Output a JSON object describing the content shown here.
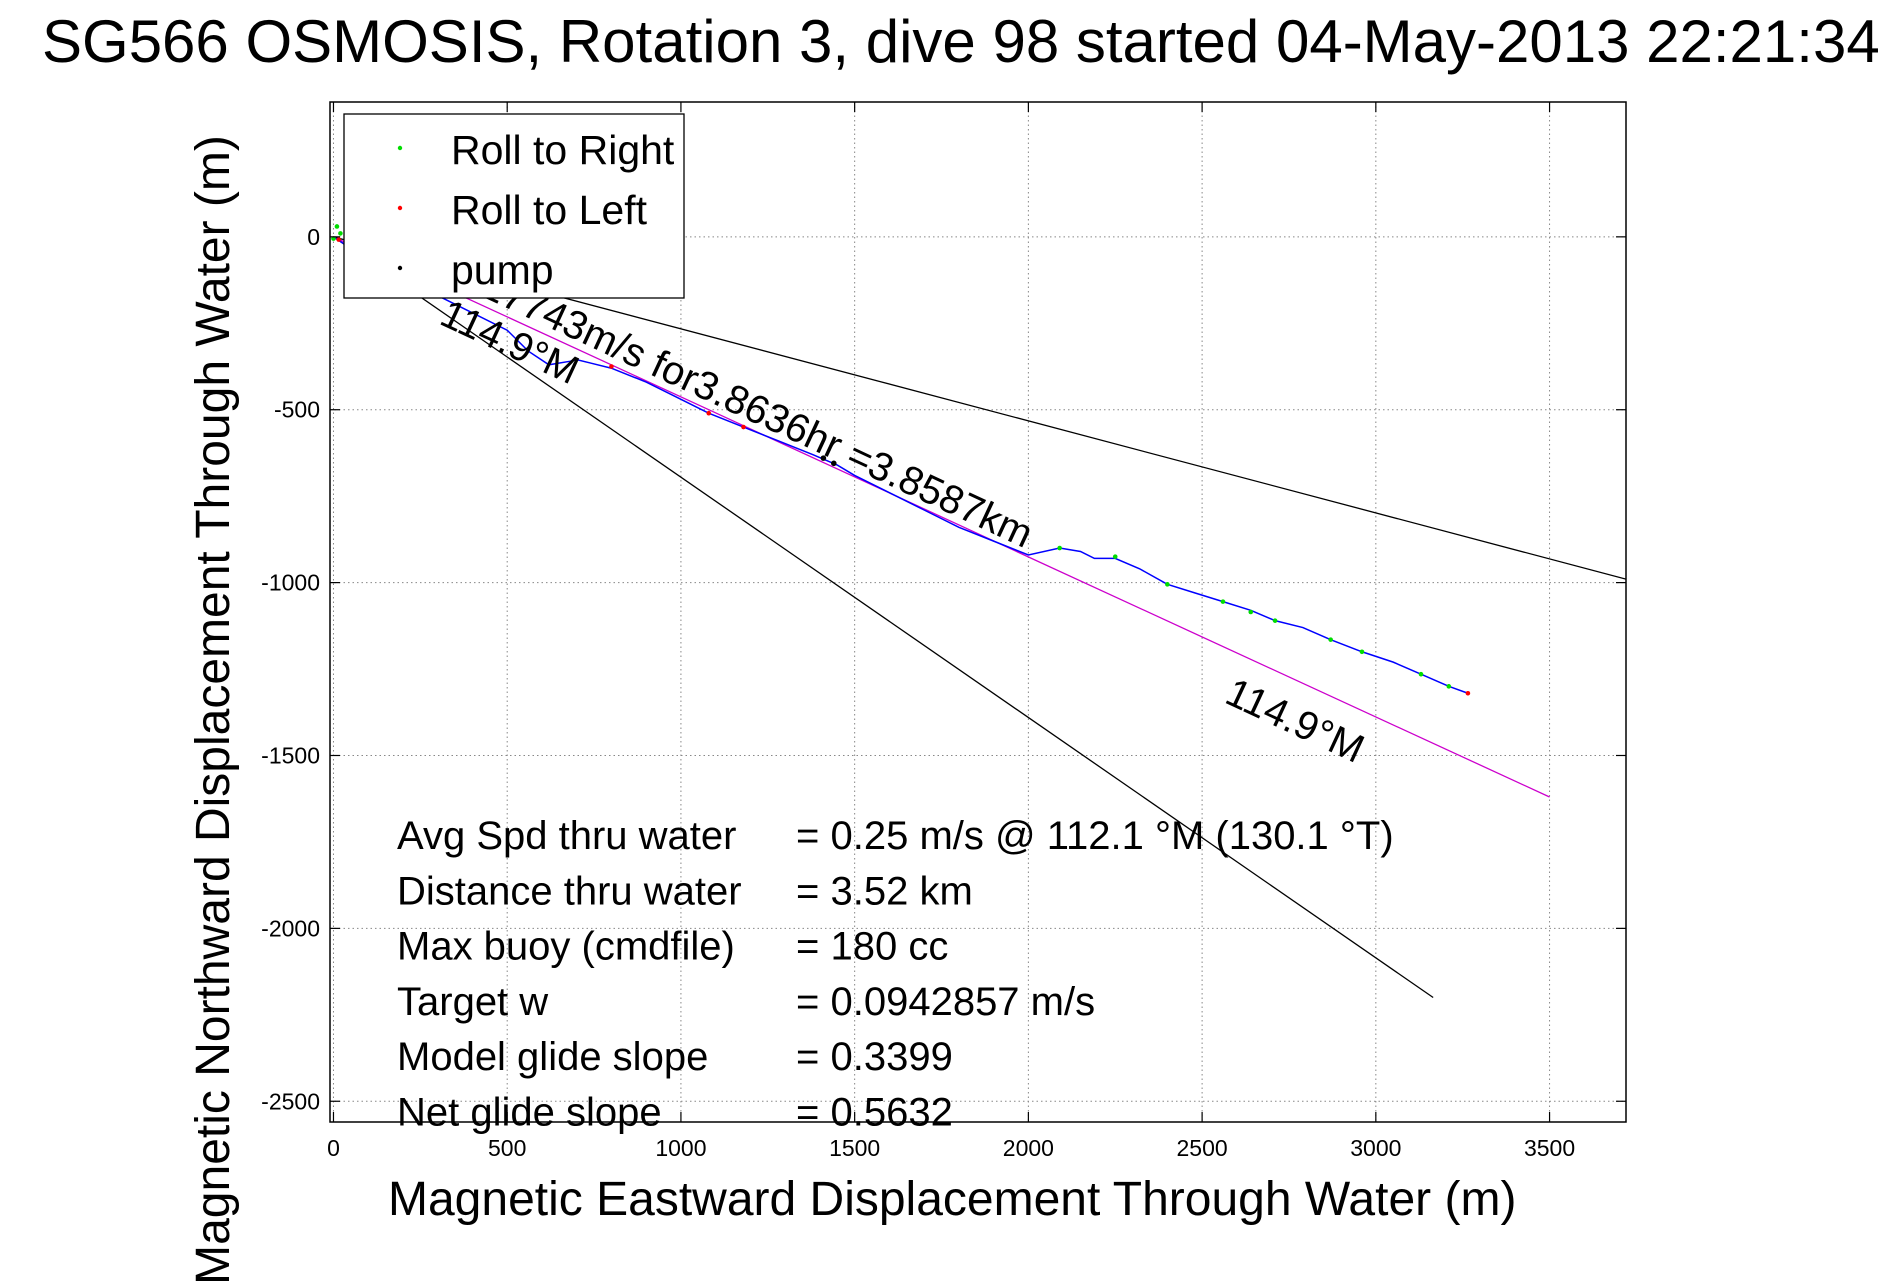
{
  "chart_data": {
    "type": "scatter",
    "title": "SG566 OSMOSIS, Rotation 3, dive 98 started 04-May-2013 22:21:34",
    "xlabel": "Magnetic Eastward Displacement Through Water (m)",
    "ylabel": "Magnetic Northward Displacement Through Water (m)",
    "xlim": [
      -10,
      3720
    ],
    "ylim": [
      -2560,
      390
    ],
    "x_ticks": [
      0,
      500,
      1000,
      1500,
      2000,
      2500,
      3000,
      3500
    ],
    "x_tick_labels": [
      "0",
      "500",
      "1000",
      "1500",
      "2000",
      "2500",
      "3000",
      "3500"
    ],
    "y_ticks": [
      0,
      -500,
      -1000,
      -1500,
      -2000,
      -2500
    ],
    "y_tick_labels": [
      "0",
      "-500",
      "-1000",
      "-1500",
      "-2000",
      "-2500"
    ],
    "grid": true,
    "legend_position": "top-left",
    "legend": [
      {
        "label": "Roll to Right",
        "color": "#00dd00"
      },
      {
        "label": "Roll to Left",
        "color": "#ff0000"
      },
      {
        "label": "pump",
        "color": "#000000"
      }
    ],
    "track": {
      "color": "#0000ff",
      "x": [
        0,
        60,
        150,
        260,
        380,
        500,
        560,
        620,
        680,
        700,
        740,
        800,
        900,
        1000,
        1080,
        1180,
        1280,
        1380,
        1450,
        1500,
        1600,
        1700,
        1800,
        1900,
        2000,
        2090,
        2150,
        2190,
        2250,
        2320,
        2400,
        2480,
        2560,
        2640,
        2710,
        2790,
        2870,
        2960,
        3050,
        3130,
        3210,
        3265
      ],
      "y": [
        0,
        -40,
        -80,
        -150,
        -210,
        -270,
        -330,
        -370,
        -360,
        -355,
        -365,
        -380,
        -420,
        -470,
        -510,
        -550,
        -590,
        -630,
        -660,
        -690,
        -740,
        -790,
        -840,
        -880,
        -920,
        -900,
        -910,
        -930,
        -930,
        -960,
        -1005,
        -1030,
        -1055,
        -1080,
        -1110,
        -1130,
        -1165,
        -1200,
        -1230,
        -1265,
        -1300,
        -1320
      ]
    },
    "series": [
      {
        "name": "Roll to Right",
        "color": "#00dd00",
        "x": [
          0,
          10,
          20,
          2090,
          2250,
          2400,
          2560,
          2640,
          2710,
          2870,
          2960,
          3130,
          3210
        ],
        "y": [
          -5,
          30,
          10,
          -900,
          -925,
          -1005,
          -1055,
          -1085,
          -1110,
          -1165,
          -1200,
          -1265,
          -1300
        ]
      },
      {
        "name": "Roll to Left",
        "color": "#ff0000",
        "x": [
          15,
          800,
          1080,
          1180,
          3265
        ],
        "y": [
          -8,
          -375,
          -510,
          -550,
          -1320
        ]
      },
      {
        "name": "pump",
        "color": "#000000",
        "x": [
          1410,
          1440
        ],
        "y": [
          -640,
          -655
        ]
      }
    ],
    "lines": [
      {
        "name": "predicted",
        "color": "#cc00cc",
        "x": [
          0,
          3500
        ],
        "y": [
          0,
          -1620
        ]
      },
      {
        "name": "bound_upper",
        "color": "#000000",
        "x": [
          0,
          3720
        ],
        "y": [
          0,
          -990
        ]
      },
      {
        "name": "bound_lower",
        "color": "#000000",
        "x": [
          0,
          3165
        ],
        "y": [
          0,
          -2200
        ]
      }
    ],
    "annotations": [
      {
        "text": ".27743m/s for3.8636hr =3.8587km",
        "x": 390,
        "y": -155,
        "angle": 24.9
      },
      {
        "text": "114.9°M",
        "x": 300,
        "y": -250,
        "angle": 24.9
      },
      {
        "text": "114.9°M",
        "x": 2560,
        "y": -1345,
        "angle": 24.9
      }
    ],
    "stats": [
      {
        "label": "Avg Spd thru water",
        "value": "=  0.25 m/s @ 112.1  °M (130.1  °T)"
      },
      {
        "label": "Distance thru water",
        "value": "=  3.52 km"
      },
      {
        "label": "Max buoy (cmdfile)",
        "value": "= 180 cc"
      },
      {
        "label": "Target w",
        "value": "= 0.0942857 m/s"
      },
      {
        "label": "Model glide slope",
        "value": "= 0.3399"
      },
      {
        "label": "Net glide slope",
        "value": "= 0.5632"
      }
    ]
  }
}
